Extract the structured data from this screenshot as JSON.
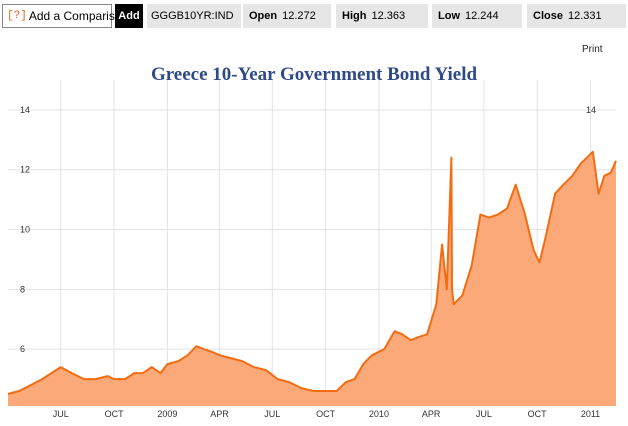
{
  "toolbar": {
    "compare_icon": "[?]",
    "compare_label": "Add a Comparison",
    "add_label": "Add",
    "ticker": "GGGB10YR:IND",
    "open_label": "Open",
    "open_value": "12.272",
    "high_label": "High",
    "high_value": "12.363",
    "low_label": "Low",
    "low_value": "12.244",
    "close_label": "Close",
    "close_value": "12.331"
  },
  "print_label": "Print",
  "colors": {
    "line": "#f26d12",
    "area": "#fca97a",
    "title": "#2e4a87"
  },
  "chart_data": {
    "type": "area",
    "title": "Greece 10-Year Government Bond Yield",
    "xlabel": "",
    "ylabel": "",
    "ylim": [
      4.1,
      15.0
    ],
    "grid": true,
    "yticks": [
      6,
      8,
      10,
      12,
      14
    ],
    "xticks": [
      "JUL",
      "OCT",
      "2009",
      "APR",
      "JUL",
      "OCT",
      "2010",
      "APR",
      "JUL",
      "OCT",
      "2011"
    ],
    "x": [
      "2008-04-01",
      "2008-04-20",
      "2008-05-10",
      "2008-05-30",
      "2008-06-15",
      "2008-07-01",
      "2008-07-20",
      "2008-08-10",
      "2008-08-30",
      "2008-09-20",
      "2008-10-01",
      "2008-10-20",
      "2008-11-05",
      "2008-11-20",
      "2008-12-05",
      "2008-12-20",
      "2009-01-01",
      "2009-01-20",
      "2009-02-05",
      "2009-02-20",
      "2009-03-05",
      "2009-03-20",
      "2009-04-01",
      "2009-04-20",
      "2009-05-10",
      "2009-05-30",
      "2009-06-20",
      "2009-07-10",
      "2009-07-30",
      "2009-08-20",
      "2009-09-10",
      "2009-09-30",
      "2009-10-20",
      "2009-11-05",
      "2009-11-20",
      "2009-12-05",
      "2009-12-20",
      "2010-01-10",
      "2010-01-28",
      "2010-02-10",
      "2010-02-25",
      "2010-03-10",
      "2010-03-25",
      "2010-04-10",
      "2010-04-20",
      "2010-04-28",
      "2010-05-06",
      "2010-05-07",
      "2010-05-10",
      "2010-05-25",
      "2010-06-10",
      "2010-06-25",
      "2010-07-10",
      "2010-07-25",
      "2010-08-10",
      "2010-08-25",
      "2010-09-10",
      "2010-09-25",
      "2010-10-05",
      "2010-10-15",
      "2010-11-01",
      "2010-11-15",
      "2010-12-01",
      "2010-12-15",
      "2011-01-05",
      "2011-01-15",
      "2011-01-25",
      "2011-02-05",
      "2011-02-14"
    ],
    "y": [
      4.5,
      4.6,
      4.8,
      5.0,
      5.2,
      5.4,
      5.2,
      5.0,
      5.0,
      5.1,
      5.0,
      5.0,
      5.2,
      5.2,
      5.4,
      5.2,
      5.5,
      5.6,
      5.8,
      6.1,
      6.0,
      5.9,
      5.8,
      5.7,
      5.6,
      5.4,
      5.3,
      5.0,
      4.9,
      4.7,
      4.6,
      4.6,
      4.6,
      4.9,
      5.0,
      5.5,
      5.8,
      6.0,
      6.6,
      6.5,
      6.3,
      6.4,
      6.5,
      7.5,
      9.5,
      8.0,
      12.4,
      8.0,
      7.5,
      7.8,
      8.8,
      10.5,
      10.4,
      10.5,
      10.7,
      11.5,
      10.5,
      9.3,
      8.9,
      9.7,
      11.2,
      11.5,
      11.8,
      12.2,
      12.6,
      11.2,
      11.8,
      11.9,
      12.3
    ]
  }
}
